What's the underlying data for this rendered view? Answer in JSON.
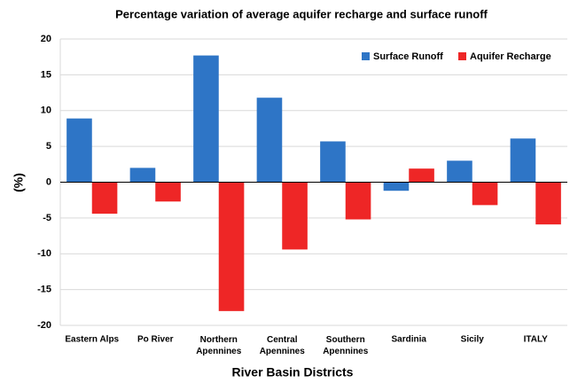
{
  "chart_data": {
    "type": "bar",
    "title": "Percentage variation of average aquifer recharge and surface runoff",
    "x_label": "River Basin Districts",
    "y_label": "(%)",
    "categories": [
      "Eastern Alps",
      "Po River",
      "Northern Apennines",
      "Central Apennines",
      "Southern Apennines",
      "Sardinia",
      "Sicily",
      "ITALY"
    ],
    "series": [
      {
        "name": "Surface Runoff",
        "color": "#2e75c6",
        "values": [
          8.9,
          2.0,
          17.7,
          11.8,
          5.7,
          -1.2,
          3.0,
          6.1
        ]
      },
      {
        "name": "Aquifer Recharge",
        "color": "#ee2626",
        "values": [
          -4.4,
          -2.7,
          -18.0,
          -9.4,
          -5.2,
          1.9,
          -3.2,
          -5.9
        ]
      }
    ],
    "ylim": [
      -20,
      20
    ],
    "yticks": [
      -20,
      -15,
      -10,
      -5,
      0,
      5,
      10,
      15,
      20
    ],
    "grid": true,
    "legend": "top-right"
  }
}
